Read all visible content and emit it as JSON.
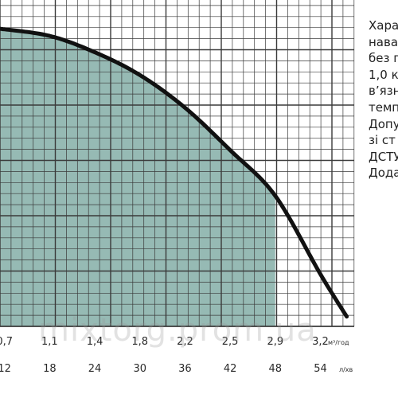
{
  "chart_data": {
    "type": "area",
    "x_axis_m3h": {
      "unit": "м³/год",
      "tick_labels": [
        "0,7",
        "1,1",
        "1,4",
        "1,8",
        "2,2",
        "2,5",
        "2,9",
        "3,2"
      ],
      "tick_values": [
        0.7,
        1.1,
        1.4,
        1.8,
        2.2,
        2.5,
        2.9,
        3.2
      ]
    },
    "x_axis_lmin": {
      "unit": "л/хв",
      "tick_labels": [
        "12",
        "18",
        "24",
        "30",
        "36",
        "42",
        "48",
        "54"
      ],
      "tick_values": [
        12,
        18,
        24,
        30,
        36,
        42,
        48,
        54
      ]
    },
    "xlim": [
      11.4,
      58.5
    ],
    "series": [
      {
        "x": [
          11.4,
          18,
          24,
          30,
          36,
          42,
          48,
          54,
          57.5
        ],
        "y": [
          0.912,
          0.89,
          0.84,
          0.77,
          0.67,
          0.54,
          0.4,
          0.16,
          0.03
        ]
      }
    ],
    "shaded_region_end_x": 48,
    "grid": true,
    "colors": {
      "fill": "#96bab4",
      "curve": "#111111",
      "grid": "#3a3a3a",
      "text": "#2a2a2a"
    }
  },
  "side_text": {
    "lines": [
      "Харак",
      "наван",
      "без п",
      "1,0 к",
      "в’язн",
      "темп",
      "Допу",
      "зі ст",
      "ДСТУ",
      "Дода"
    ]
  },
  "watermark": "mixtorg.prom.ua"
}
